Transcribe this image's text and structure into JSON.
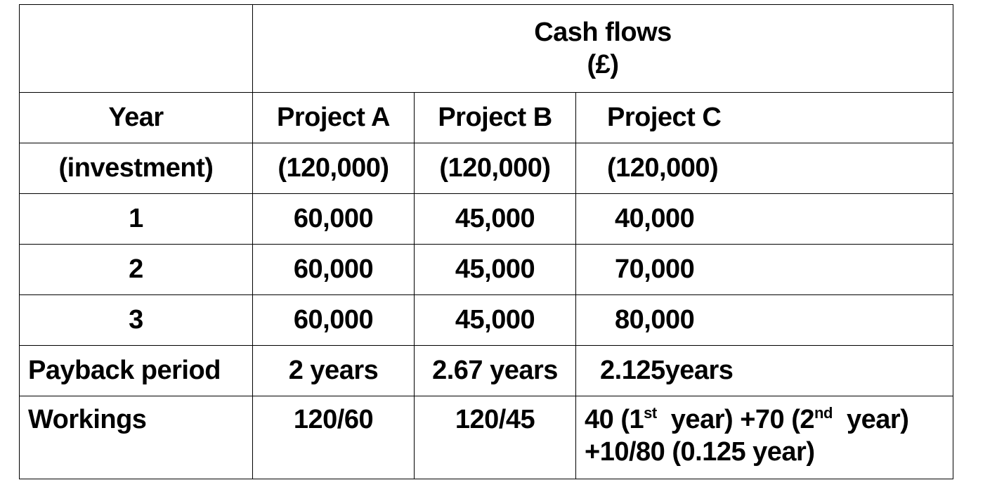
{
  "table": {
    "header": {
      "title": "Cash flows",
      "unit": "(£)"
    },
    "columns": {
      "year": "Year",
      "project_a": "Project A",
      "project_b": "Project B",
      "project_c": "Project C"
    },
    "rows": [
      {
        "year": "(investment)",
        "a": "(120,000)",
        "b": "(120,000)",
        "c": "(120,000)"
      },
      {
        "year": "1",
        "a": "60,000",
        "b": "45,000",
        "c": "40,000"
      },
      {
        "year": "2",
        "a": "60,000",
        "b": "45,000",
        "c": "70,000"
      },
      {
        "year": "3",
        "a": "60,000",
        "b": "45,000",
        "c": "80,000"
      }
    ],
    "payback": {
      "label": "Payback period",
      "a": "2 years",
      "b": "2.67 years",
      "c": "2.125years"
    },
    "workings": {
      "label": "Workings",
      "a": "120/60",
      "b": "120/45",
      "c_line1": {
        "p1": "40 (1",
        "sup1": "st",
        "p2": "  year) +70 (2",
        "sup2": "nd",
        "p3": "  year)"
      },
      "c_line2": "+10/80 (0.125 year)"
    }
  }
}
